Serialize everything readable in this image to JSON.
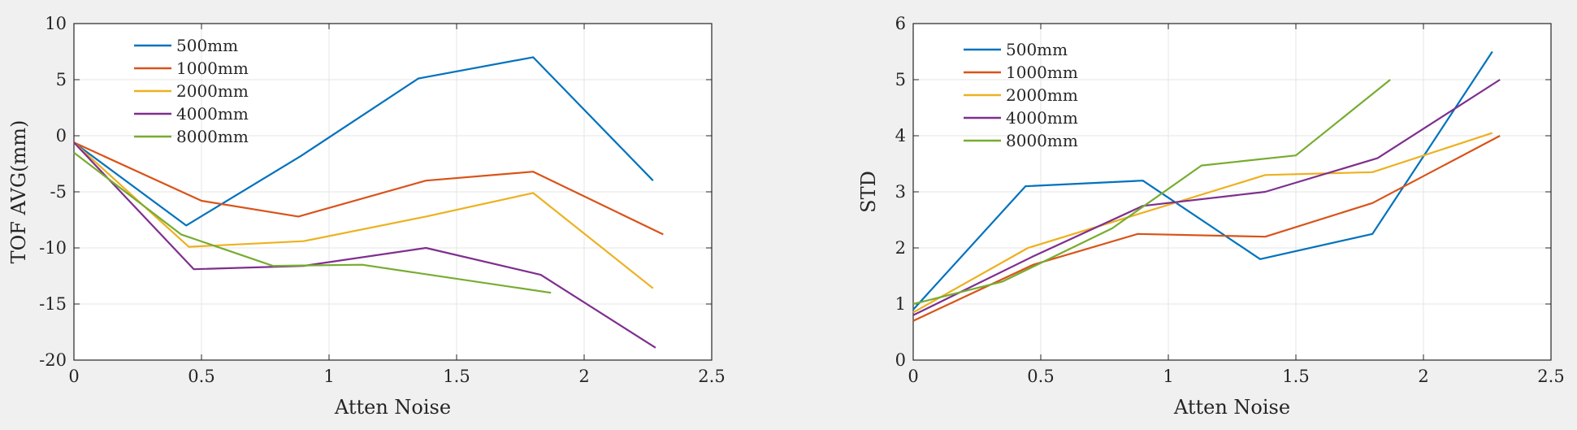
{
  "chart_data": [
    {
      "type": "line",
      "xlabel": "Atten Noise",
      "ylabel": "TOF AVG(mm)",
      "xlim": [
        0,
        2.5
      ],
      "ylim": [
        -20,
        10
      ],
      "xticks": [
        "0",
        "0.5",
        "1",
        "1.5",
        "2",
        "2.5"
      ],
      "yticks": [
        "-20",
        "-15",
        "-10",
        "-5",
        "0",
        "5",
        "10"
      ],
      "grid": true,
      "legend_position": "top-left",
      "series": [
        {
          "name": "500mm",
          "color": "#0072bd",
          "x": [
            0,
            0.44,
            0.89,
            1.35,
            1.8,
            2.27
          ],
          "y": [
            -0.6,
            -8.0,
            -1.8,
            5.1,
            7.0,
            -4.0
          ]
        },
        {
          "name": "1000mm",
          "color": "#d95319",
          "x": [
            0,
            0.5,
            0.88,
            1.38,
            1.8,
            2.31
          ],
          "y": [
            -0.6,
            -5.8,
            -7.2,
            -4.0,
            -3.2,
            -8.8
          ]
        },
        {
          "name": "2000mm",
          "color": "#edb120",
          "x": [
            0,
            0.45,
            0.9,
            1.38,
            1.8,
            2.27
          ],
          "y": [
            -0.6,
            -9.9,
            -9.4,
            -7.2,
            -5.1,
            -13.6
          ]
        },
        {
          "name": "4000mm",
          "color": "#7e2f8e",
          "x": [
            0,
            0.47,
            0.9,
            1.38,
            1.83,
            2.28
          ],
          "y": [
            -0.6,
            -11.9,
            -11.6,
            -10.0,
            -12.4,
            -18.9
          ]
        },
        {
          "name": "8000mm",
          "color": "#77ac30",
          "x": [
            0,
            0.42,
            0.78,
            1.13,
            1.87
          ],
          "y": [
            -1.5,
            -8.8,
            -11.6,
            -11.5,
            -14.0
          ]
        }
      ]
    },
    {
      "type": "line",
      "xlabel": "Atten Noise",
      "ylabel": "STD",
      "xlim": [
        0,
        2.5
      ],
      "ylim": [
        0,
        6
      ],
      "xticks": [
        "0",
        "0.5",
        "1",
        "1.5",
        "2",
        "2.5"
      ],
      "yticks": [
        "0",
        "1",
        "2",
        "3",
        "4",
        "5",
        "6"
      ],
      "grid": true,
      "legend_position": "top-left",
      "series": [
        {
          "name": "500mm",
          "color": "#0072bd",
          "x": [
            0,
            0.44,
            0.9,
            1.36,
            1.8,
            2.27
          ],
          "y": [
            0.9,
            3.1,
            3.2,
            1.8,
            2.25,
            5.5
          ]
        },
        {
          "name": "1000mm",
          "color": "#d95319",
          "x": [
            0,
            0.47,
            0.88,
            1.38,
            1.8,
            2.3
          ],
          "y": [
            0.7,
            1.7,
            2.25,
            2.2,
            2.8,
            4.0
          ]
        },
        {
          "name": "2000mm",
          "color": "#edb120",
          "x": [
            0,
            0.45,
            0.88,
            1.38,
            1.8,
            2.27
          ],
          "y": [
            0.85,
            2.0,
            2.6,
            3.3,
            3.35,
            4.05
          ]
        },
        {
          "name": "4000mm",
          "color": "#7e2f8e",
          "x": [
            0,
            0.47,
            0.9,
            1.38,
            1.82,
            2.3
          ],
          "y": [
            0.8,
            1.85,
            2.75,
            3.0,
            3.6,
            5.0
          ]
        },
        {
          "name": "8000mm",
          "color": "#77ac30",
          "x": [
            0,
            0.35,
            0.78,
            1.13,
            1.5,
            1.87
          ],
          "y": [
            1.0,
            1.4,
            2.35,
            3.47,
            3.65,
            5.0
          ]
        }
      ]
    }
  ]
}
